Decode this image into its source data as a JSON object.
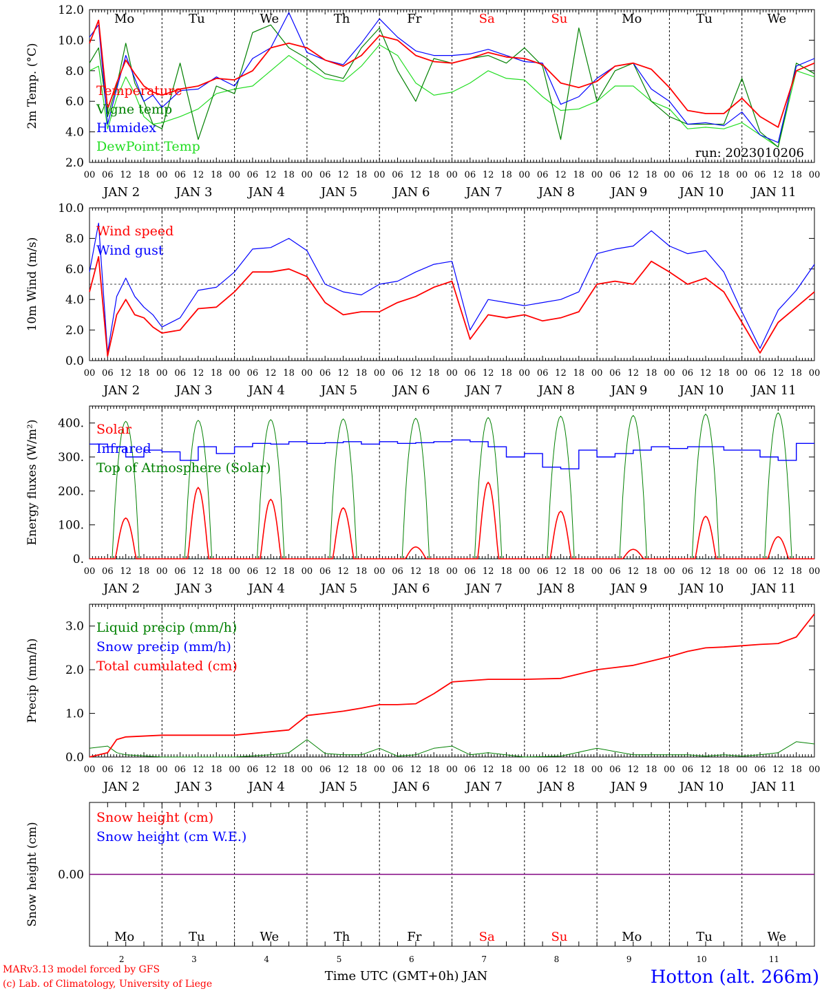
{
  "colors": {
    "red": "#ff0000",
    "blue": "#0000ff",
    "green": "#008000",
    "lightgreen": "#22dd22",
    "purple": "#800080",
    "axis": "#000000"
  },
  "footer": {
    "model_line1": "MARv3.13 model forced by GFS",
    "model_line2": "(c) Lab. of Climatology, University of Liege",
    "time_axis": "Time UTC (GMT+0h) JAN",
    "station": "Hotton (alt. 266m)"
  },
  "chart_data": [
    {
      "type": "line",
      "ylabel": "2m Temp. (°C)",
      "ylim": [
        2.0,
        12.0
      ],
      "yticks": [
        "2.0",
        "4.0",
        "6.0",
        "8.0",
        "10.0",
        "12.0"
      ],
      "weekday_labels": [
        "Mo",
        "Tu",
        "We",
        "Th",
        "Fr",
        "Sa",
        "Su",
        "Mo",
        "Tu",
        "We"
      ],
      "weekend_days": [
        "Sa",
        "Su"
      ],
      "run_label": "run: 2023010206",
      "legend": [
        {
          "name": "Temperature",
          "color": "#ff0000"
        },
        {
          "name": "Vigne temp",
          "color": "#008000"
        },
        {
          "name": "Humidex",
          "color": "#0000ff"
        },
        {
          "name": "DewPoint Temp",
          "color": "#22dd22"
        }
      ],
      "x_hours": [
        0,
        3,
        6,
        9,
        12,
        15,
        18,
        21,
        24,
        30,
        36,
        42,
        48,
        54,
        60,
        66,
        72,
        78,
        84,
        90,
        96,
        102,
        108,
        114,
        120,
        126,
        132,
        138,
        144,
        150,
        156,
        162,
        168,
        174,
        180,
        186,
        192,
        198,
        204,
        210,
        216,
        222,
        228,
        234,
        240
      ],
      "series": [
        {
          "name": "Temperature",
          "color": "#ff0000",
          "values": [
            9.8,
            11.3,
            5.5,
            7.2,
            8.7,
            7.8,
            7.0,
            6.6,
            6.4,
            6.8,
            7.0,
            7.5,
            7.4,
            8.0,
            9.5,
            9.8,
            9.5,
            8.7,
            8.3,
            9.0,
            10.3,
            10.0,
            9.0,
            8.6,
            8.5,
            8.8,
            9.2,
            8.9,
            8.8,
            8.4,
            7.2,
            6.9,
            7.3,
            8.3,
            8.5,
            8.1,
            6.9,
            5.4,
            5.2,
            5.2,
            6.2,
            5.0,
            4.3,
            8.0,
            8.5
          ]
        },
        {
          "name": "Vigne temp",
          "color": "#008000",
          "values": [
            8.5,
            9.5,
            5.0,
            7.0,
            9.8,
            7.2,
            6.0,
            4.5,
            4.2,
            8.5,
            3.5,
            7.0,
            6.5,
            10.5,
            11.0,
            9.5,
            8.8,
            7.8,
            7.5,
            9.5,
            10.8,
            8.0,
            6.0,
            8.8,
            8.5,
            8.8,
            9.0,
            8.5,
            9.5,
            8.3,
            3.5,
            10.8,
            6.0,
            8.0,
            8.5,
            6.0,
            5.0,
            4.5,
            4.5,
            4.5,
            7.5,
            4.0,
            3.0,
            8.5,
            7.8
          ]
        },
        {
          "name": "Humidex",
          "color": "#0000ff",
          "values": [
            10.2,
            11.0,
            4.5,
            6.8,
            9.0,
            7.5,
            6.0,
            6.4,
            5.6,
            6.7,
            6.8,
            7.6,
            7.0,
            8.8,
            9.5,
            11.8,
            9.2,
            8.7,
            8.4,
            9.8,
            11.4,
            10.2,
            9.3,
            9.0,
            9.0,
            9.1,
            9.4,
            9.0,
            8.6,
            8.5,
            5.8,
            6.3,
            7.5,
            8.3,
            8.5,
            6.8,
            6.0,
            4.5,
            4.6,
            4.4,
            5.3,
            3.8,
            3.3,
            8.3,
            8.8
          ]
        },
        {
          "name": "DewPoint Temp",
          "color": "#22dd22",
          "values": [
            8.0,
            8.3,
            4.2,
            6.2,
            7.6,
            6.5,
            5.0,
            4.5,
            4.6,
            5.0,
            5.5,
            6.5,
            6.8,
            7.0,
            8.0,
            9.0,
            8.2,
            7.5,
            7.3,
            8.3,
            9.7,
            9.0,
            7.2,
            6.4,
            6.6,
            7.2,
            8.0,
            7.5,
            7.4,
            6.3,
            5.4,
            5.5,
            6.0,
            7.0,
            7.0,
            6.0,
            5.5,
            4.2,
            4.3,
            4.2,
            4.6,
            3.8,
            3.0,
            8.0,
            7.6
          ]
        }
      ]
    },
    {
      "type": "line",
      "ylabel": "10m Wind (m/s)",
      "ylim": [
        0.0,
        10.0
      ],
      "yticks": [
        "0.0",
        "2.0",
        "4.0",
        "6.0",
        "8.0",
        "10.0"
      ],
      "reference_line": 5.0,
      "legend": [
        {
          "name": "Wind speed",
          "color": "#ff0000"
        },
        {
          "name": "Wind gust",
          "color": "#0000ff"
        }
      ],
      "x_hours": [
        0,
        3,
        6,
        9,
        12,
        15,
        18,
        21,
        24,
        30,
        36,
        42,
        48,
        54,
        60,
        66,
        72,
        78,
        84,
        90,
        96,
        102,
        108,
        114,
        120,
        126,
        132,
        138,
        144,
        150,
        156,
        162,
        168,
        174,
        180,
        186,
        192,
        198,
        204,
        210,
        216,
        222,
        228,
        234,
        240
      ],
      "series": [
        {
          "name": "Wind speed",
          "color": "#ff0000",
          "values": [
            4.5,
            6.8,
            0.3,
            3.0,
            4.0,
            3.0,
            2.8,
            2.2,
            1.8,
            2.0,
            3.4,
            3.5,
            4.5,
            5.8,
            5.8,
            6.0,
            5.5,
            3.8,
            3.0,
            3.2,
            3.2,
            3.8,
            4.2,
            4.8,
            5.2,
            1.4,
            3.0,
            2.8,
            3.0,
            2.6,
            2.8,
            3.2,
            5.0,
            5.2,
            5.0,
            6.5,
            5.8,
            5.0,
            5.4,
            4.5,
            2.5,
            0.5,
            2.5,
            3.5,
            4.5
          ]
        },
        {
          "name": "Wind gust",
          "color": "#0000ff",
          "values": [
            5.8,
            9.0,
            0.5,
            4.2,
            5.4,
            4.2,
            3.5,
            3.0,
            2.2,
            2.8,
            4.6,
            4.8,
            5.8,
            7.3,
            7.4,
            8.0,
            7.2,
            5.0,
            4.5,
            4.3,
            5.0,
            5.2,
            5.8,
            6.3,
            6.5,
            2.0,
            4.0,
            3.8,
            3.6,
            3.8,
            4.0,
            4.5,
            7.0,
            7.3,
            7.5,
            8.5,
            7.5,
            7.0,
            7.2,
            5.8,
            3.2,
            0.8,
            3.3,
            4.6,
            6.3
          ]
        }
      ]
    },
    {
      "type": "line",
      "ylabel": "Energy fluxes (W/m²)",
      "ylim": [
        0,
        450
      ],
      "yticks": [
        "0.",
        "100.",
        "200.",
        "300.",
        "400."
      ],
      "legend": [
        {
          "name": "Solar",
          "color": "#ff0000"
        },
        {
          "name": "Infrared",
          "color": "#0000ff"
        },
        {
          "name": "Top of Atmosphere (Solar)",
          "color": "#008000"
        }
      ],
      "daily_toa_peak": [
        405,
        408,
        410,
        412,
        414,
        416,
        420,
        422,
        426,
        430
      ],
      "daily_solar_peak": [
        120,
        210,
        175,
        150,
        35,
        225,
        140,
        28,
        125,
        65
      ],
      "infrared": {
        "x_hours": [
          0,
          6,
          12,
          18,
          24,
          30,
          36,
          42,
          48,
          54,
          60,
          66,
          72,
          78,
          84,
          90,
          96,
          102,
          108,
          114,
          120,
          126,
          132,
          138,
          144,
          150,
          156,
          162,
          168,
          174,
          180,
          186,
          192,
          198,
          204,
          210,
          216,
          222,
          228,
          234,
          240
        ],
        "values": [
          338,
          330,
          300,
          320,
          315,
          290,
          330,
          310,
          330,
          340,
          338,
          345,
          340,
          342,
          345,
          338,
          345,
          340,
          342,
          345,
          350,
          345,
          330,
          300,
          310,
          270,
          265,
          320,
          300,
          310,
          320,
          330,
          325,
          330,
          330,
          320,
          320,
          300,
          290,
          340,
          340
        ]
      }
    },
    {
      "type": "line",
      "ylabel": "Precip (mm/h)",
      "ylim": [
        0.0,
        3.5
      ],
      "yticks": [
        "0.0",
        "1.0",
        "2.0",
        "3.0"
      ],
      "legend": [
        {
          "name": "Liquid precip (mm/h)",
          "color": "#008000"
        },
        {
          "name": "Snow precip (mm/h)",
          "color": "#0000ff"
        },
        {
          "name": "Total cumulated (cm)",
          "color": "#ff0000"
        }
      ],
      "x_hours": [
        0,
        6,
        9,
        12,
        24,
        36,
        48,
        60,
        66,
        72,
        78,
        84,
        90,
        96,
        102,
        108,
        114,
        120,
        126,
        132,
        144,
        156,
        168,
        180,
        186,
        192,
        198,
        204,
        210,
        216,
        222,
        228,
        234,
        240
      ],
      "series": [
        {
          "name": "Total cumulated (cm)",
          "color": "#ff0000",
          "values": [
            0.0,
            0.1,
            0.4,
            0.46,
            0.5,
            0.5,
            0.5,
            0.58,
            0.62,
            0.95,
            1.0,
            1.05,
            1.12,
            1.2,
            1.2,
            1.22,
            1.45,
            1.72,
            1.75,
            1.78,
            1.78,
            1.8,
            2.0,
            2.1,
            2.2,
            2.3,
            2.42,
            2.5,
            2.52,
            2.55,
            2.58,
            2.6,
            2.75,
            3.28
          ]
        },
        {
          "name": "Liquid precip (mm/h)",
          "color": "#008000",
          "values": [
            0.2,
            0.25,
            0.1,
            0.05,
            0.0,
            0.0,
            0.0,
            0.05,
            0.1,
            0.4,
            0.08,
            0.05,
            0.05,
            0.2,
            0.02,
            0.05,
            0.2,
            0.25,
            0.05,
            0.1,
            0.0,
            0.02,
            0.2,
            0.05,
            0.05,
            0.05,
            0.05,
            0.02,
            0.05,
            0.02,
            0.05,
            0.1,
            0.35,
            0.3
          ]
        }
      ]
    },
    {
      "type": "line",
      "ylabel": "Snow height (cm)",
      "ylim": [
        -1.0,
        1.0
      ],
      "yticks": [
        "0.00"
      ],
      "legend": [
        {
          "name": "Snow height (cm)",
          "color": "#ff0000"
        },
        {
          "name": "Snow height (cm W.E.)",
          "color": "#0000ff"
        }
      ],
      "weekday_labels": [
        "Mo",
        "Tu",
        "We",
        "Th",
        "Fr",
        "Sa",
        "Su",
        "Mo",
        "Tu",
        "We"
      ],
      "weekend_days": [
        "Sa",
        "Su"
      ],
      "day_numbers": [
        "2",
        "3",
        "4",
        "5",
        "6",
        "7",
        "8",
        "9",
        "10",
        "11"
      ],
      "series": [
        {
          "name": "Snow height",
          "color": "#800080",
          "values": [
            0.0,
            0.0
          ]
        }
      ]
    }
  ],
  "x_axis": {
    "hour_labels": [
      "00",
      "06",
      "12",
      "18"
    ],
    "date_labels": [
      "JAN  2",
      "JAN  3",
      "JAN  4",
      "JAN  5",
      "JAN  6",
      "JAN  7",
      "JAN  8",
      "JAN  9",
      "JAN 10",
      "JAN 11"
    ],
    "final_hour_label": "00"
  }
}
